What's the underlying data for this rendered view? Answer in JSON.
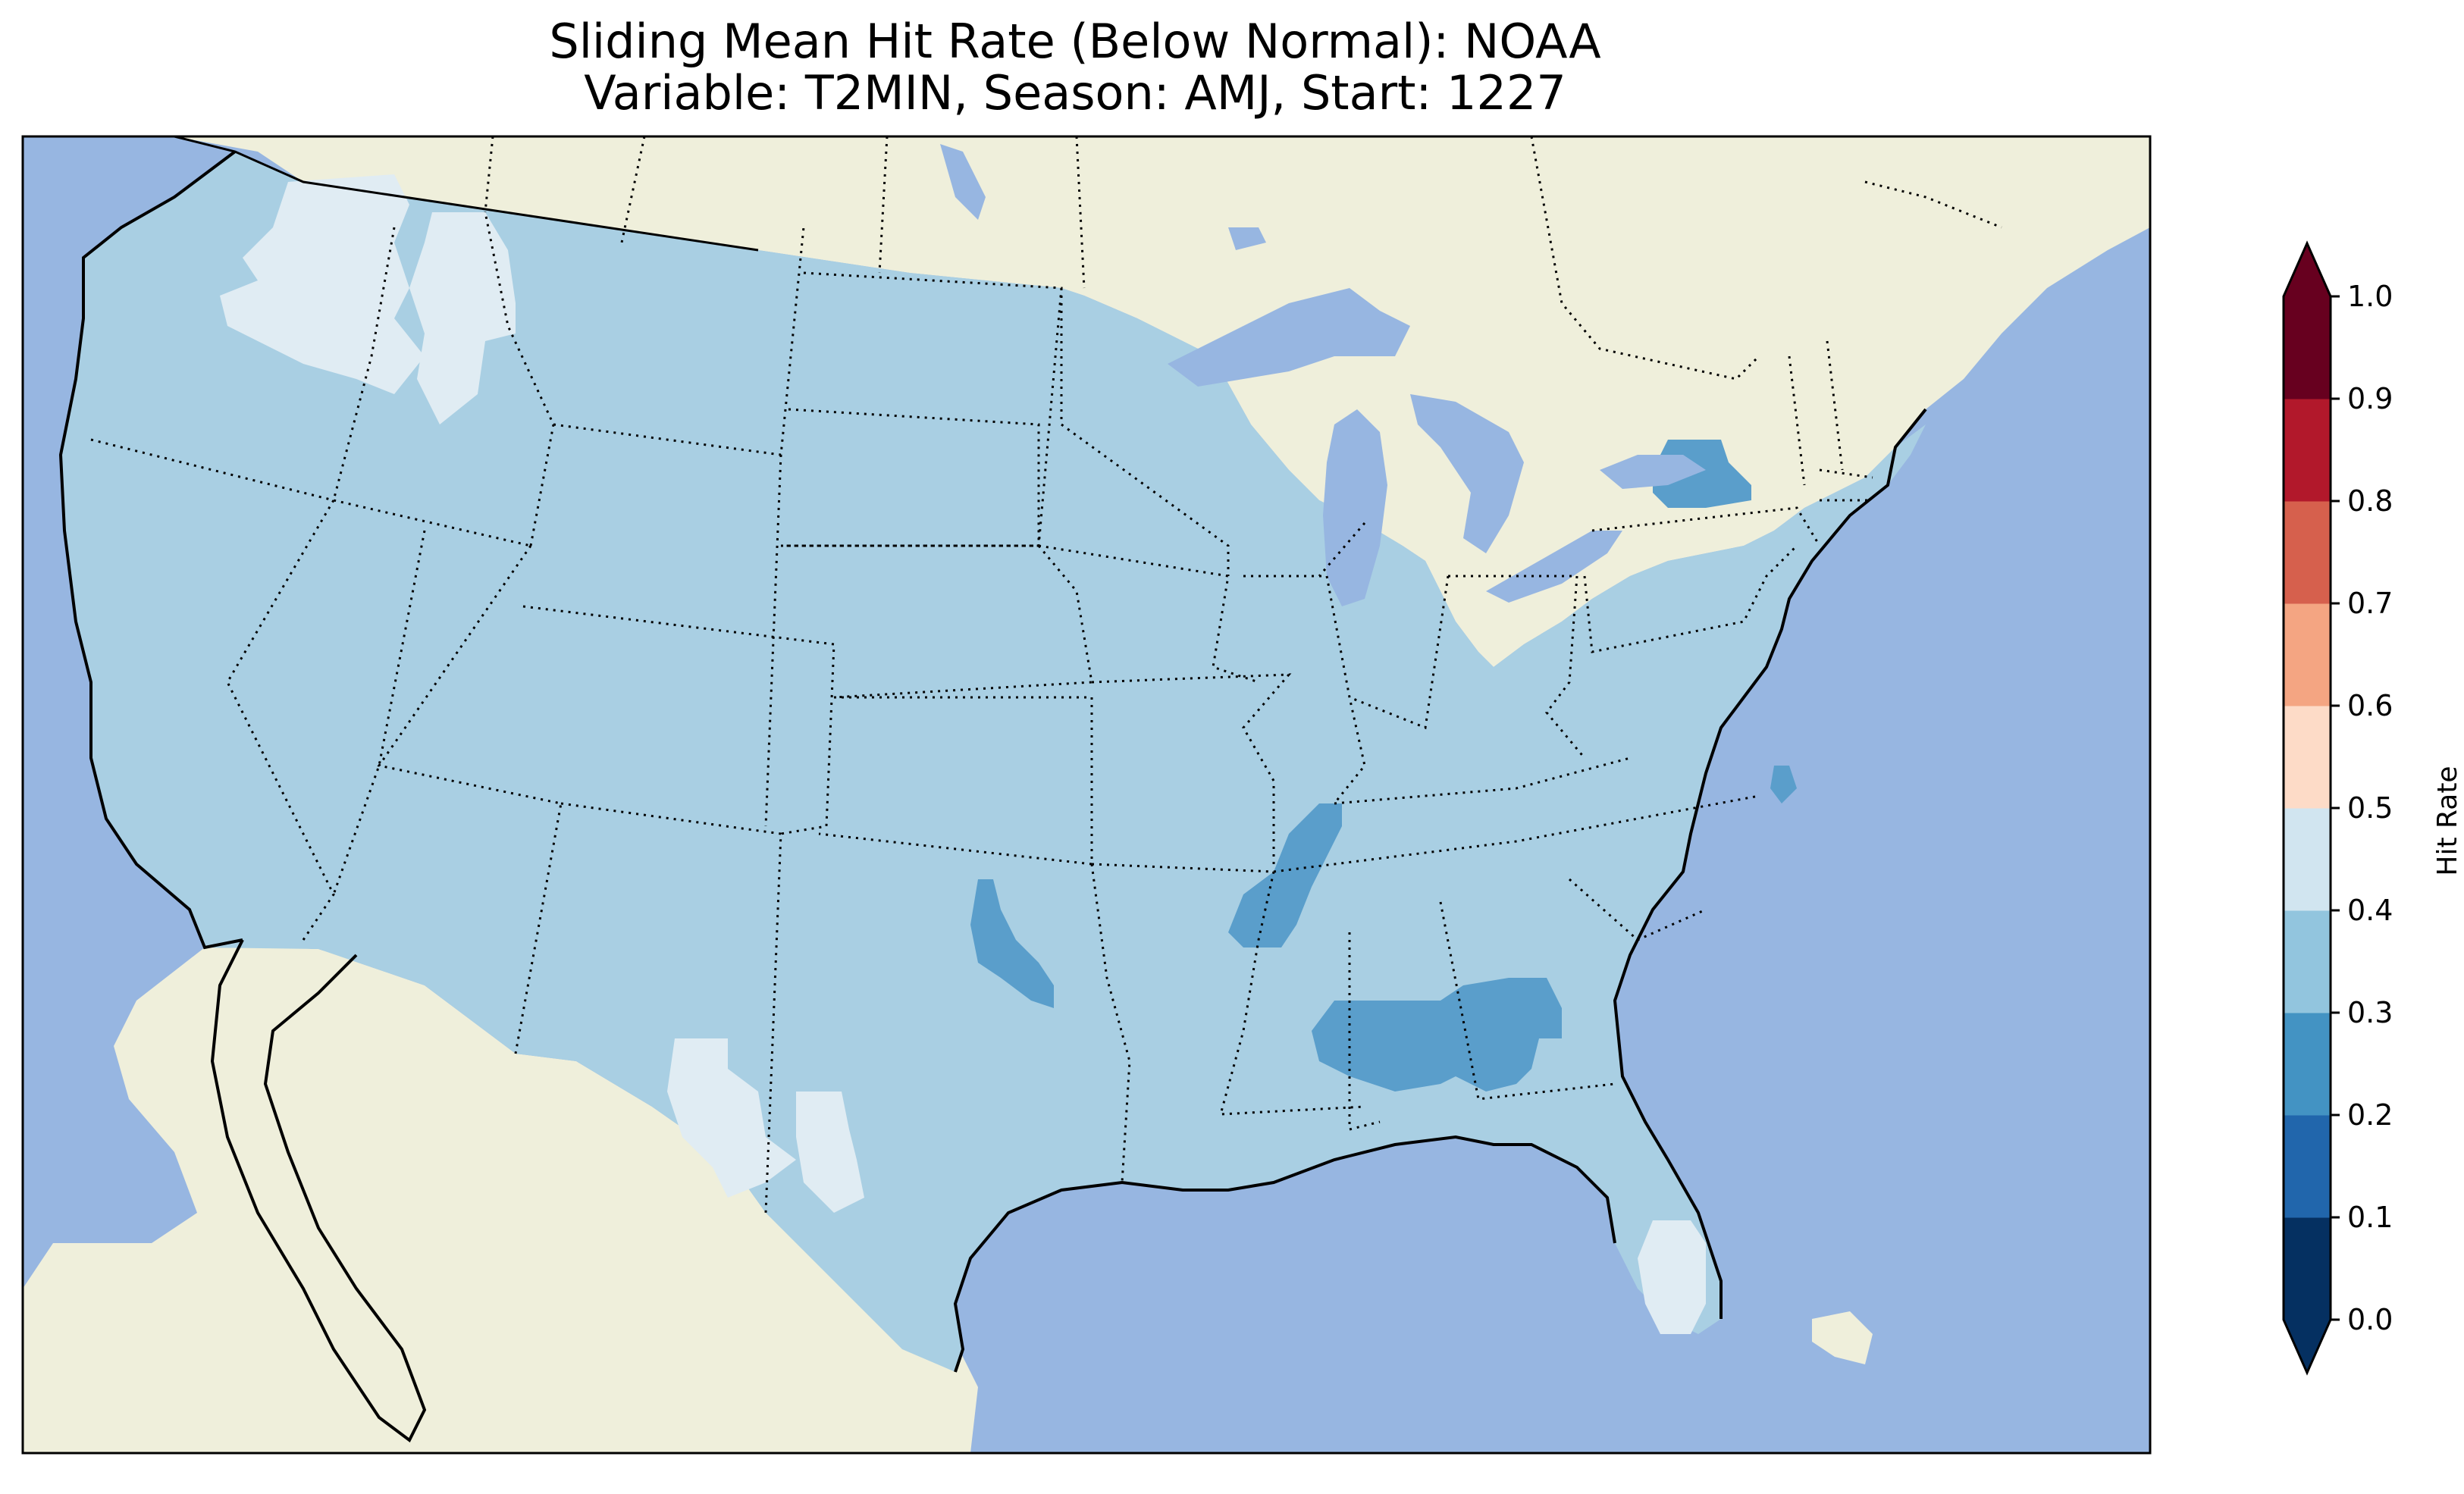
{
  "title_line1": "Sliding Mean Hit Rate (Below Normal): NOAA",
  "title_line2": "Variable: T2MIN, Season: AMJ, Start: 1227",
  "colorbar": {
    "label": "Hit Rate",
    "ticks": [
      "0.0",
      "0.1",
      "0.2",
      "0.3",
      "0.4",
      "0.5",
      "0.6",
      "0.7",
      "0.8",
      "0.9",
      "1.0"
    ],
    "colors": [
      "#053061",
      "#2166ac",
      "#4393c3",
      "#92c5de",
      "#d1e5f0",
      "#fddbc7",
      "#f4a582",
      "#d6604d",
      "#b2182b",
      "#67001f"
    ],
    "under_color": "#053061",
    "over_color": "#67001f",
    "extend": "both"
  },
  "map_colors": {
    "ocean": "#97b6e1",
    "land": "#efefdb",
    "us_dominant": "#a9cfe3",
    "bin_0_2_0_3": "#5a9ecb",
    "bin_0_4_0_5": "#e0ecf3"
  },
  "map": {
    "region": "Contiguous United States",
    "dominant_range": "0.3–0.4",
    "lower_patches_range": "0.2–0.3",
    "higher_patches_range": "0.4–0.5",
    "lower_patches": [
      "Upstate New York",
      "Oklahoma",
      "Mississippi River (Tennessee/Arkansas)",
      "Alabama–Georgia",
      "Coastal North Carolina"
    ],
    "higher_patches": [
      "Washington–Oregon",
      "Idaho panhandle",
      "West Texas",
      "South Florida"
    ]
  }
}
